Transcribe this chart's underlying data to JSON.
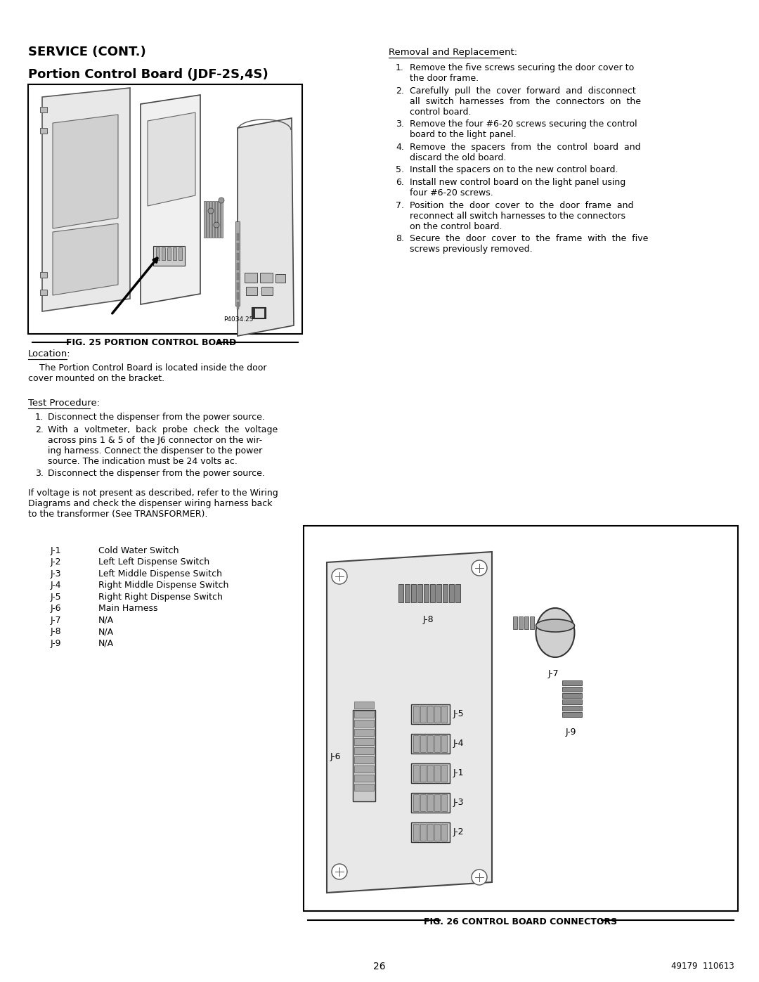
{
  "bg_color": "#ffffff",
  "title_service": "SERVICE (CONT.)",
  "title_section": "Portion Control Board (JDF-2S,4S)",
  "fig25_caption": "FIG. 25 PORTION CONTROL BOARD",
  "fig26_caption": "FIG. 26 CONTROL BOARD CONNECTORS",
  "location_heading": "Location:",
  "location_text": "    The Portion Control Board is located inside the door\ncover mounted on the bracket.",
  "test_heading": "Test Procedure:",
  "test_items": [
    "Disconnect the dispenser from the power source.",
    "With  a  voltmeter,  back  probe  check  the  voltage\nacross pins 1 & 5 of  the J6 connector on the wir-\ning harness. Connect the dispenser to the power\nsource. The indication must be 24 volts ac.",
    "Disconnect the dispenser from the power source."
  ],
  "voltage_note": "If voltage is not present as described, refer to the Wiring\nDiagrams and check the dispenser wiring harness back\nto the transformer (See TRANSFORMER).",
  "removal_heading": "Removal and Replacement:",
  "removal_items": [
    "Remove the five screws securing the door cover to\nthe door frame.",
    "Carefully  pull  the  cover  forward  and  disconnect\nall  switch  harnesses  from  the  connectors  on  the\ncontrol board.",
    "Remove the four #6-20 screws securing the control\nboard to the light panel.",
    "Remove  the  spacers  from  the  control  board  and\ndiscard the old board.",
    "Install the spacers on to the new control board.",
    "Install new control board on the light panel using\nfour #6-20 screws.",
    "Position  the  door  cover  to  the  door  frame  and\nreconnect all switch harnesses to the connectors\non the control board.",
    "Secure  the  door  cover  to  the  frame  with  the  five\nscrews previously removed."
  ],
  "connector_labels": [
    [
      "J-1",
      "Cold Water Switch"
    ],
    [
      "J-2",
      "Left Left Dispense Switch"
    ],
    [
      "J-3",
      "Left Middle Dispense Switch"
    ],
    [
      "J-4",
      "Right Middle Dispense Switch"
    ],
    [
      "J-5",
      "Right Right Dispense Switch"
    ],
    [
      "J-6",
      "Main Harness"
    ],
    [
      "J-7",
      "N/A"
    ],
    [
      "J-8",
      "N/A"
    ],
    [
      "J-9",
      "N/A"
    ]
  ],
  "page_number": "26",
  "doc_number": "49179  110613"
}
